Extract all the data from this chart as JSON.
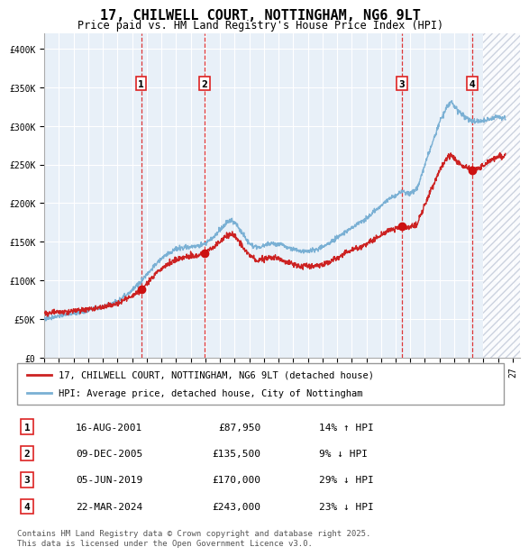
{
  "title": "17, CHILWELL COURT, NOTTINGHAM, NG6 9LT",
  "subtitle": "Price paid vs. HM Land Registry's House Price Index (HPI)",
  "ylabel": "",
  "xlim": [
    1995.0,
    2027.5
  ],
  "ylim": [
    0,
    420000
  ],
  "yticks": [
    0,
    50000,
    100000,
    150000,
    200000,
    250000,
    300000,
    350000,
    400000
  ],
  "ytick_labels": [
    "£0",
    "£50K",
    "£100K",
    "£150K",
    "£200K",
    "£250K",
    "£300K",
    "£350K",
    "£400K"
  ],
  "bg_color": "#e8f0f8",
  "hatch_color": "#c0c8d8",
  "grid_color": "#ffffff",
  "line_color_hpi": "#7ab0d4",
  "line_color_price": "#cc2222",
  "sale_dot_color": "#cc1111",
  "vline_color": "#dd2222",
  "purchases": [
    {
      "num": 1,
      "date": "16-AUG-2001",
      "x": 2001.62,
      "price": 87950,
      "pct": "14%",
      "dir": "↑"
    },
    {
      "num": 2,
      "date": "09-DEC-2005",
      "x": 2005.94,
      "price": 135500,
      "pct": "9%",
      "dir": "↓"
    },
    {
      "num": 3,
      "date": "05-JUN-2019",
      "x": 2019.43,
      "price": 170000,
      "pct": "29%",
      "dir": "↓"
    },
    {
      "num": 4,
      "date": "22-MAR-2024",
      "x": 2024.22,
      "price": 243000,
      "pct": "23%",
      "dir": "↓"
    }
  ],
  "legend_house_label": "17, CHILWELL COURT, NOTTINGHAM, NG6 9LT (detached house)",
  "legend_hpi_label": "HPI: Average price, detached house, City of Nottingham",
  "footer": "Contains HM Land Registry data © Crown copyright and database right 2025.\nThis data is licensed under the Open Government Licence v3.0.",
  "hpi_start_year": 1995.0,
  "hpi_end_year": 2026.5,
  "future_hatch_start": 2025.0
}
